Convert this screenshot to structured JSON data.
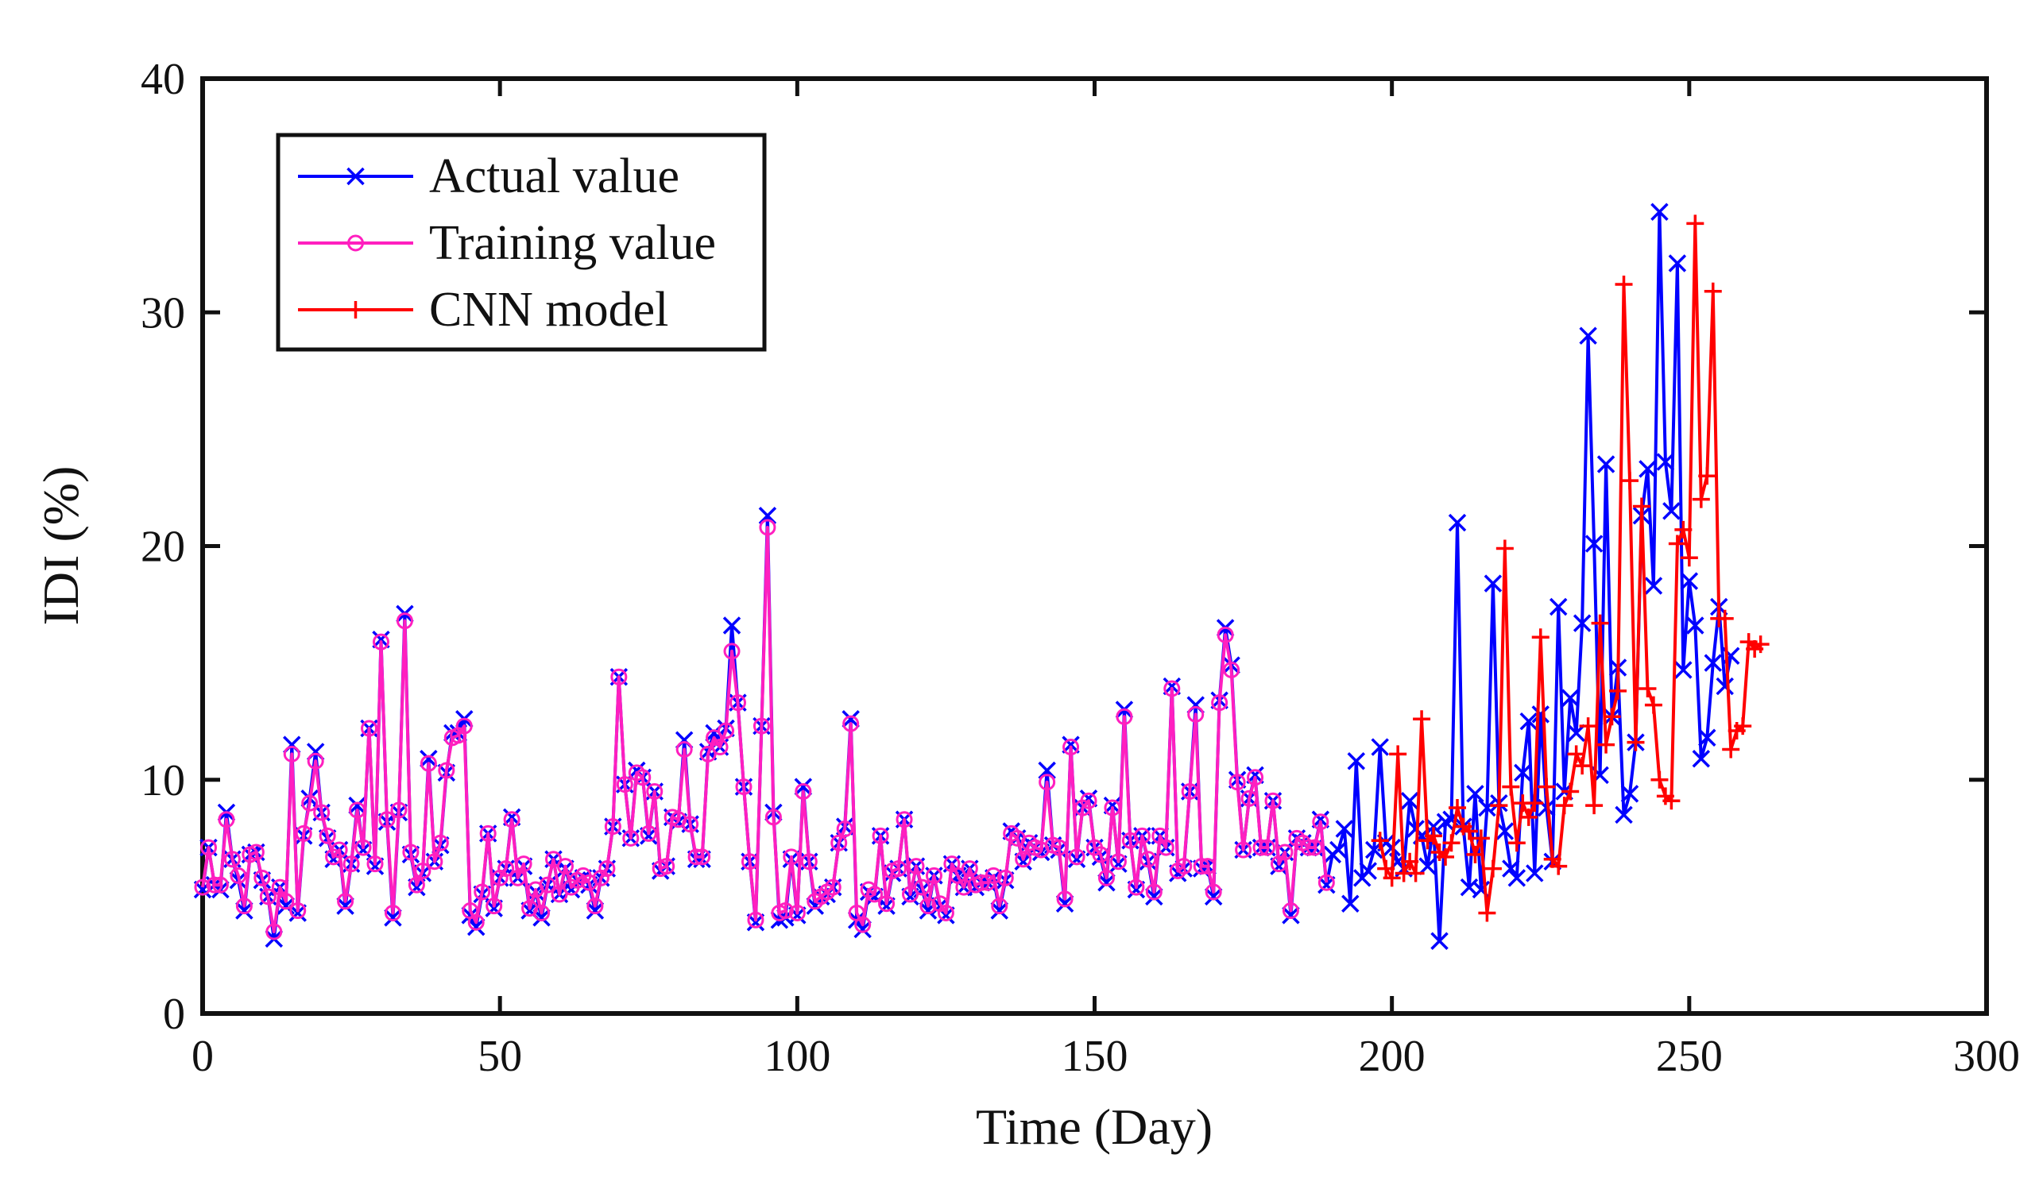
{
  "chart_data": {
    "type": "line",
    "title": "",
    "xlabel": "Time (Day)",
    "ylabel": "IDI (%)",
    "xlim": [
      0,
      300
    ],
    "ylim": [
      0,
      40
    ],
    "xticks": [
      0,
      50,
      100,
      150,
      200,
      250,
      300
    ],
    "yticks": [
      0,
      10,
      20,
      30,
      40
    ],
    "xtick_labels": [
      "0",
      "50",
      "100",
      "150",
      "200",
      "250",
      "300"
    ],
    "ytick_labels": [
      "0",
      "10",
      "20",
      "30",
      "40"
    ],
    "grid": false,
    "legend_position": "top-left",
    "training_end_day": 198,
    "series": [
      {
        "name": "Actual value",
        "color": "#0000ff",
        "marker": "x",
        "x_start": 0,
        "values": [
          5.3,
          7.1,
          5.5,
          5.3,
          8.6,
          6.6,
          5.7,
          4.4,
          6.8,
          6.9,
          5.7,
          5.0,
          3.2,
          5.4,
          4.6,
          11.5,
          4.3,
          7.6,
          9.2,
          11.2,
          8.6,
          7.5,
          6.6,
          7.0,
          4.6,
          6.4,
          8.9,
          7.0,
          12.2,
          6.3,
          16.0,
          8.2,
          4.1,
          8.6,
          17.1,
          6.8,
          5.4,
          6.0,
          10.9,
          6.5,
          7.2,
          10.3,
          12.0,
          12.0,
          12.6,
          4.2,
          3.7,
          5.1,
          7.7,
          4.5,
          5.8,
          6.2,
          8.4,
          5.8,
          6.3,
          4.4,
          5.2,
          4.1,
          5.5,
          6.6,
          5.1,
          6.2,
          5.3,
          5.7,
          5.8,
          5.5,
          4.4,
          5.8,
          6.2,
          8.0,
          14.4,
          9.8,
          7.5,
          10.4,
          10.1,
          7.6,
          9.5,
          6.1,
          6.3,
          8.4,
          8.2,
          11.7,
          8.1,
          6.6,
          6.6,
          11.2,
          12.0,
          11.4,
          12.2,
          16.6,
          13.3,
          9.7,
          6.5,
          3.9,
          12.3,
          21.3,
          8.6,
          4.0,
          4.1,
          6.6,
          4.2,
          9.7,
          6.5,
          4.6,
          5.0,
          5.1,
          5.4,
          7.3,
          8.0,
          12.6,
          4.0,
          3.6,
          5.2,
          5.0,
          7.6,
          4.6,
          6.0,
          6.2,
          8.3,
          5.0,
          6.3,
          5.3,
          4.4,
          5.9,
          4.6,
          4.2,
          6.4,
          5.9,
          5.4,
          6.2,
          5.4,
          5.6,
          5.6,
          5.8,
          4.4,
          5.7,
          7.8,
          7.5,
          6.5,
          7.3,
          7.1,
          6.9,
          10.4,
          7.2,
          7.0,
          4.7,
          11.5,
          6.6,
          8.8,
          9.2,
          7.1,
          6.7,
          5.6,
          8.9,
          6.4,
          13.0,
          7.4,
          5.3,
          7.6,
          6.5,
          5.0,
          7.6,
          7.1,
          14.0,
          6.0,
          6.2,
          9.5,
          13.2,
          6.2,
          6.3,
          5.0,
          13.4,
          16.5,
          14.9,
          10.0,
          7.0,
          9.2,
          10.2,
          7.1,
          7.1,
          9.1,
          6.3,
          6.9,
          4.2,
          7.5,
          7.3,
          7.1,
          7.1,
          8.3,
          5.5,
          6.8,
          7.0,
          7.9,
          4.7,
          10.8,
          5.8,
          6.1,
          7.0,
          11.4,
          7.3,
          7.1,
          6.5,
          6.2,
          9.1,
          7.9,
          7.6,
          6.3,
          8.0,
          3.1,
          8.2,
          8.3,
          21.0,
          8.0,
          5.4,
          9.4,
          5.3,
          8.8,
          18.4,
          9.0,
          7.8,
          6.2,
          5.8,
          10.3,
          12.5,
          6.0,
          12.8,
          8.8,
          6.5,
          17.4,
          9.5,
          13.5,
          12.0,
          16.7,
          29.0,
          20.1,
          10.2,
          23.5,
          12.7,
          14.8,
          8.5,
          9.4,
          11.6,
          21.3,
          23.3,
          18.3,
          34.3,
          23.6,
          21.5,
          32.1,
          14.7,
          18.5,
          16.6,
          10.9,
          11.8,
          15.0,
          17.4,
          14.0,
          15.3
        ]
      },
      {
        "name": "Training value",
        "color": "#ff1fbf",
        "marker": "o",
        "x_start": 0,
        "values": [
          5.4,
          7.1,
          5.5,
          5.5,
          8.3,
          6.6,
          5.9,
          4.6,
          6.8,
          6.9,
          5.8,
          5.0,
          3.5,
          5.4,
          4.8,
          11.1,
          4.4,
          7.7,
          9.0,
          10.8,
          8.6,
          7.6,
          6.7,
          7.0,
          4.8,
          6.4,
          8.7,
          7.1,
          12.2,
          6.4,
          15.9,
          8.3,
          4.3,
          8.7,
          16.8,
          6.9,
          5.5,
          6.1,
          10.7,
          6.5,
          7.3,
          10.4,
          11.8,
          11.9,
          12.3,
          4.4,
          3.9,
          5.2,
          7.7,
          4.6,
          5.8,
          6.2,
          8.3,
          5.8,
          6.4,
          4.5,
          5.3,
          4.3,
          5.5,
          6.6,
          5.1,
          6.3,
          5.4,
          5.7,
          5.9,
          5.6,
          4.6,
          5.8,
          6.2,
          8.0,
          14.4,
          9.8,
          7.5,
          10.3,
          10.1,
          7.7,
          9.5,
          6.2,
          6.3,
          8.4,
          8.3,
          11.3,
          8.1,
          6.7,
          6.7,
          11.1,
          11.8,
          11.4,
          12.1,
          15.5,
          13.3,
          9.7,
          6.5,
          4.0,
          12.3,
          20.8,
          8.4,
          4.3,
          4.4,
          6.7,
          4.3,
          9.5,
          6.5,
          4.8,
          5.0,
          5.2,
          5.4,
          7.3,
          7.9,
          12.4,
          4.3,
          3.8,
          5.3,
          5.1,
          7.6,
          4.7,
          6.1,
          6.2,
          8.3,
          5.1,
          6.3,
          5.4,
          4.6,
          5.9,
          4.7,
          4.3,
          6.4,
          5.9,
          5.4,
          6.2,
          5.5,
          5.6,
          5.6,
          5.9,
          4.6,
          5.8,
          7.7,
          7.5,
          6.6,
          7.3,
          7.1,
          7.0,
          9.9,
          7.2,
          7.1,
          4.9,
          11.4,
          6.7,
          8.8,
          9.1,
          7.1,
          6.8,
          5.8,
          8.8,
          6.5,
          12.7,
          7.4,
          5.4,
          7.6,
          6.6,
          5.2,
          7.6,
          7.1,
          13.9,
          6.1,
          6.3,
          9.5,
          12.8,
          6.3,
          6.3,
          5.2,
          13.3,
          16.2,
          14.7,
          9.9,
          7.0,
          9.2,
          10.1,
          7.1,
          7.1,
          9.1,
          6.4,
          6.9,
          4.4,
          7.5,
          7.3,
          7.1,
          7.1,
          8.2,
          5.6
        ]
      },
      {
        "name": "CNN model",
        "color": "#ff0000",
        "marker": "+",
        "x_start": 198,
        "values": [
          7.4,
          6.2,
          5.8,
          11.1,
          6.0,
          6.5,
          6.0,
          12.6,
          7.4,
          7.6,
          6.9,
          6.7,
          7.3,
          8.8,
          8.0,
          7.8,
          6.8,
          7.5,
          4.3,
          6.2,
          8.9,
          19.9,
          9.7,
          7.3,
          9.0,
          8.4,
          9.0,
          16.1,
          9.7,
          6.6,
          6.3,
          8.9,
          9.5,
          11.1,
          10.6,
          12.3,
          8.9,
          16.7,
          11.5,
          12.7,
          13.8,
          31.2,
          22.8,
          11.6,
          21.7,
          13.9,
          13.2,
          10.0,
          9.3,
          9.1,
          20.1,
          20.7,
          19.5,
          33.8,
          22.0,
          23.0,
          30.9,
          16.9,
          16.9,
          11.3,
          12.1,
          12.3,
          15.9,
          15.6,
          15.8
        ]
      }
    ]
  }
}
